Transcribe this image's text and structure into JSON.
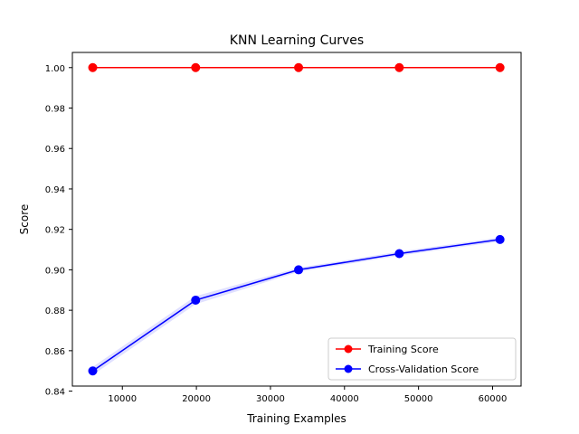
{
  "chart_data": {
    "type": "line",
    "title": "KNN Learning Curves",
    "xlabel": "Training Examples",
    "ylabel": "Score",
    "xlim": [
      3250,
      63850
    ],
    "ylim": [
      0.8425,
      1.0075
    ],
    "x_ticks": [
      10000,
      20000,
      30000,
      40000,
      50000,
      60000
    ],
    "x_tick_labels": [
      "10000",
      "20000",
      "30000",
      "40000",
      "50000",
      "60000"
    ],
    "y_ticks": [
      0.84,
      0.86,
      0.88,
      0.9,
      0.92,
      0.94,
      0.96,
      0.98,
      1.0
    ],
    "y_tick_labels": [
      "0.84",
      "0.86",
      "0.88",
      "0.90",
      "0.92",
      "0.94",
      "0.96",
      "0.98",
      "1.00"
    ],
    "grid": false,
    "legend_position": "lower-right",
    "x": [
      6000,
      19900,
      33800,
      47400,
      61000
    ],
    "series": [
      {
        "name": "Training Score",
        "color": "#ff0000",
        "marker": "circle",
        "values": [
          1.0,
          1.0,
          1.0,
          1.0,
          1.0
        ]
      },
      {
        "name": "Cross-Validation Score",
        "color": "#0000ff",
        "marker": "circle",
        "values": [
          0.85,
          0.885,
          0.9,
          0.908,
          0.915
        ],
        "band": {
          "color": "#ddddff",
          "lower": [
            0.848,
            0.883,
            0.899,
            0.907,
            0.914
          ],
          "upper": [
            0.852,
            0.887,
            0.901,
            0.909,
            0.916
          ]
        }
      }
    ]
  }
}
